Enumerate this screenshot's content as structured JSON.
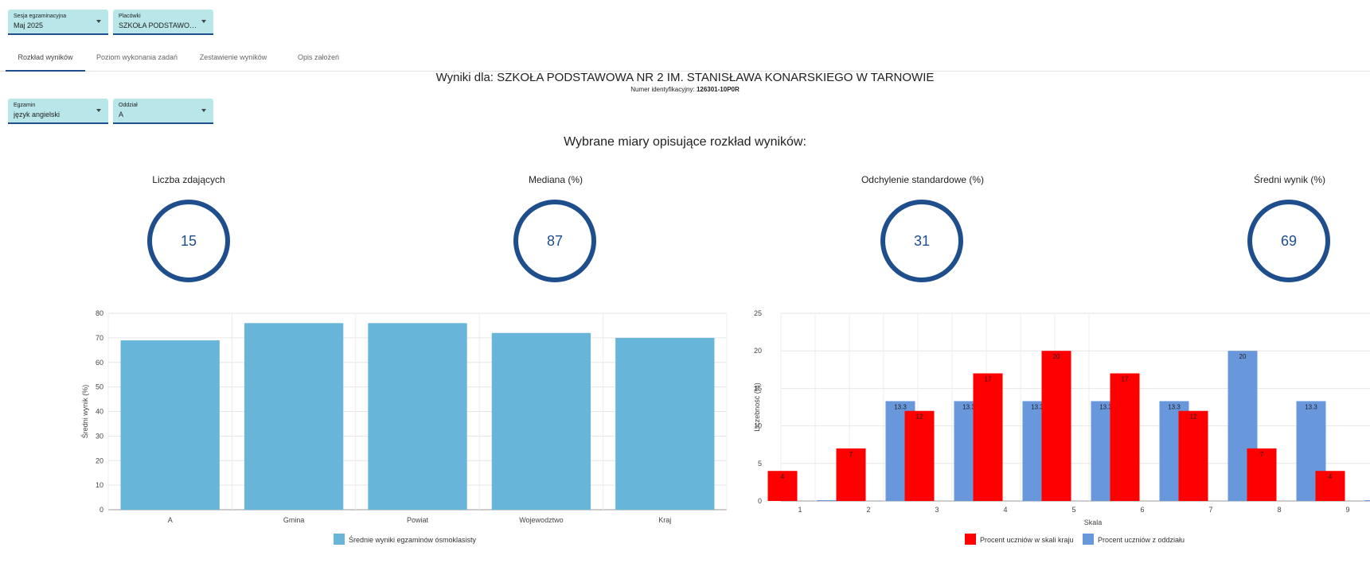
{
  "filters_top": [
    {
      "label": "Sesja egzaminacyjna",
      "value": "Maj 2025"
    },
    {
      "label": "Placówki",
      "value": "SZKOŁA PODSTAWOWA..."
    }
  ],
  "tabs": [
    {
      "label": "Rozkład wyników",
      "active": true
    },
    {
      "label": "Poziom wykonania zadań",
      "active": false
    },
    {
      "label": "Zestawienie wyników",
      "active": false
    },
    {
      "label": "Opis założeń",
      "active": false
    }
  ],
  "header": {
    "title": "Wyniki dla: SZKOŁA PODSTAWOWA NR 2 IM. STANISŁAWA KONARSKIEGO W TARNOWIE",
    "id_label": "Numer identyfikacyjny:",
    "id_value": "126301-10P0R"
  },
  "filters_second": [
    {
      "label": "Egzamin",
      "value": "język angielski"
    },
    {
      "label": "Oddział",
      "value": "A"
    }
  ],
  "section_title": "Wybrane miary opisujące rozkład wyników:",
  "metrics": [
    {
      "label": "Liczba zdających",
      "value": "15"
    },
    {
      "label": "Mediana (%)",
      "value": "87"
    },
    {
      "label": "Odchylenie standardowe (%)",
      "value": "31"
    },
    {
      "label": "Średni wynik (%)",
      "value": "69"
    }
  ],
  "colors": {
    "accent": "#1f4e8c",
    "select_bg": "#b9e6e8",
    "bar_avg": "#67b6da",
    "bar_country": "#ff0000",
    "bar_class": "#6897dc"
  },
  "chart_data": [
    {
      "type": "bar",
      "categories": [
        "A",
        "Gmina",
        "Powiat",
        "Wojewodztwo",
        "Kraj"
      ],
      "series": [
        {
          "name": "Średnie wyniki egzaminów ósmoklasisty",
          "values": [
            69,
            76,
            76,
            72,
            70
          ]
        }
      ],
      "ylabel": "Średni wynik (%)",
      "ylim": [
        0,
        80
      ],
      "yticks": [
        "0",
        "10",
        "20",
        "30",
        "40",
        "50",
        "60",
        "70",
        "80"
      ],
      "grid": true,
      "legend": "bottom"
    },
    {
      "type": "bar",
      "categories": [
        "1",
        "2",
        "3",
        "4",
        "5",
        "6",
        "7",
        "8",
        "9"
      ],
      "series": [
        {
          "name": "Procent uczniów w skali kraju",
          "values": [
            4,
            7,
            12,
            17,
            20,
            17,
            12,
            7,
            4
          ],
          "labels": [
            "4",
            "7",
            "12",
            "17",
            "20",
            "17",
            "12",
            "7",
            "4"
          ]
        },
        {
          "name": "Procent uczniów z oddziału",
          "values": [
            0,
            13.3,
            13.3,
            13.3,
            13.3,
            13.3,
            20,
            13.3,
            0
          ],
          "labels": [
            "",
            "13.3",
            "13.3",
            "13.3",
            "13.3",
            "13.3",
            "20",
            "13.3",
            ""
          ]
        }
      ],
      "xlabel": "Skala",
      "ylabel": "Liczebność (%)",
      "ylim": [
        0,
        25
      ],
      "yticks": [
        "0",
        "5",
        "10",
        "15",
        "20",
        "25"
      ],
      "grid": true,
      "legend": "bottom"
    }
  ]
}
